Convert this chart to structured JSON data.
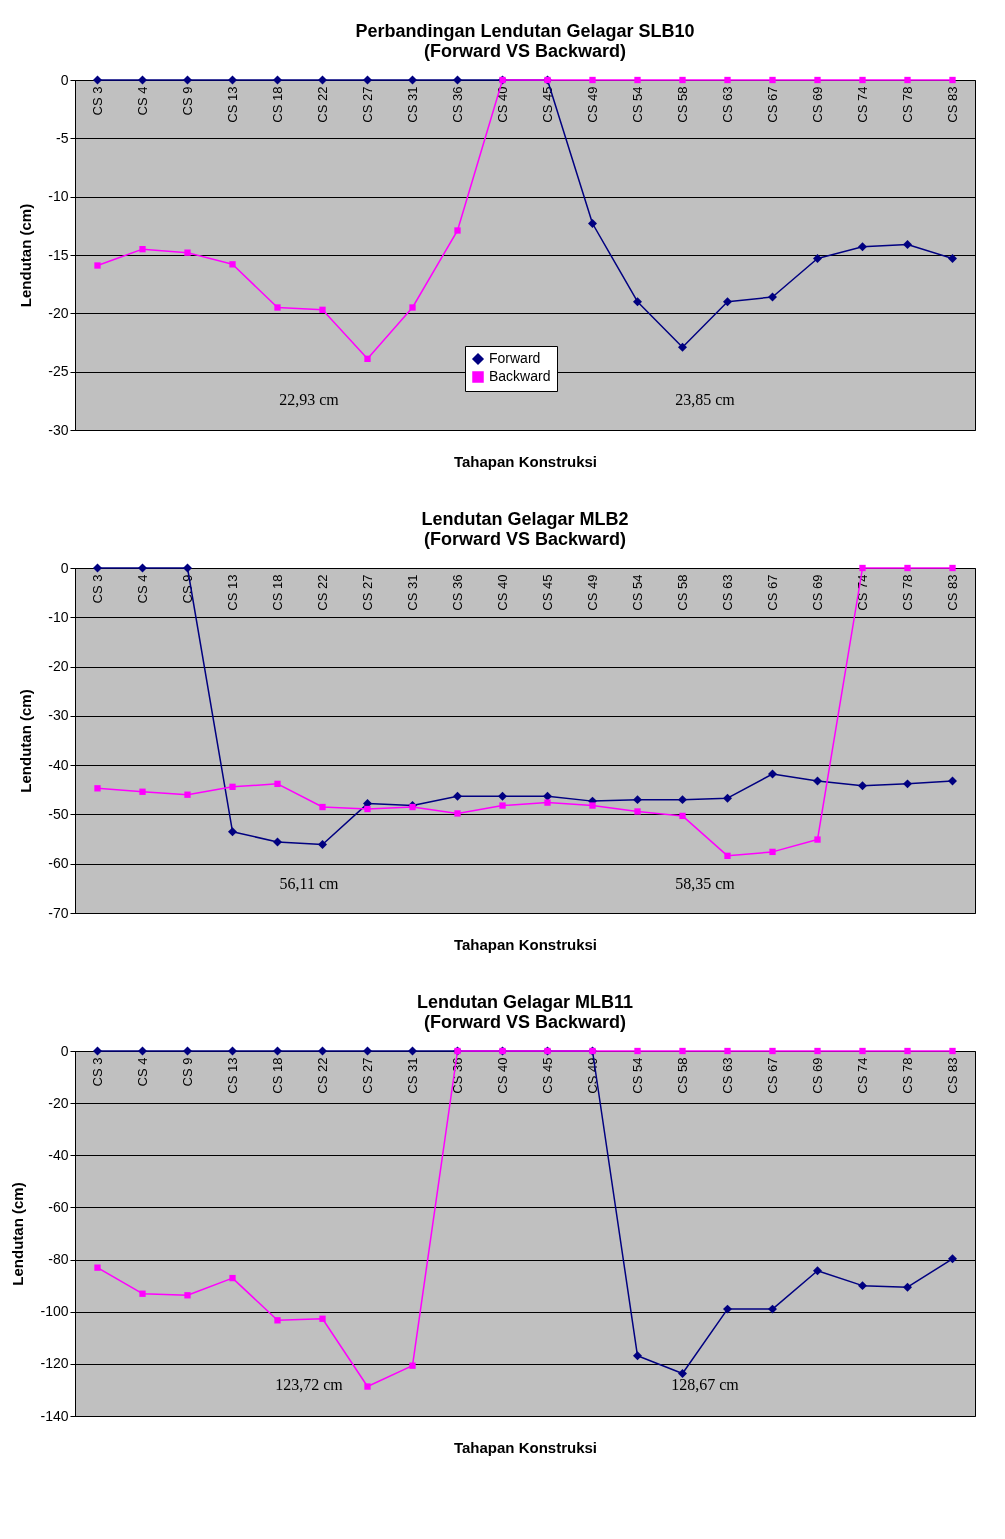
{
  "chart_data": [
    {
      "type": "line",
      "title": "Perbandingan Lendutan Gelagar SLB10\n(Forward VS Backward)",
      "xlabel": "Tahapan Konstruksi",
      "ylabel": "Lendutan (cm)",
      "categories": [
        "CS 3",
        "CS 4",
        "CS 9",
        "CS 13",
        "CS 18",
        "CS 22",
        "CS 27",
        "CS 31",
        "CS 36",
        "CS 40",
        "CS 45",
        "CS 49",
        "CS 54",
        "CS 58",
        "CS 63",
        "CS 67",
        "CS 69",
        "CS 74",
        "CS 78",
        "CS 83"
      ],
      "ylim": [
        -30,
        0
      ],
      "yticks": [
        -30,
        -25,
        -20,
        -15,
        -10,
        -5,
        0
      ],
      "grid": "y",
      "legend": "bottom",
      "annotations": [
        "22,93 cm",
        "23,85 cm"
      ],
      "series": [
        {
          "name": "Forward",
          "color": "#000080",
          "marker": "diamond",
          "values": [
            0,
            0,
            0,
            0,
            0,
            0,
            0,
            0,
            0,
            0,
            0,
            -12.3,
            -19,
            -22.9,
            -19,
            -18.6,
            -15.3,
            -14.3,
            -14.1,
            -15.3
          ]
        },
        {
          "name": "Backward",
          "color": "#ff00ff",
          "marker": "square",
          "values": [
            -15.9,
            -14.5,
            -14.8,
            -15.8,
            -19.5,
            -19.7,
            -23.9,
            -19.5,
            -12.9,
            0,
            0,
            0,
            0,
            0,
            0,
            0,
            0,
            0,
            0,
            0
          ]
        }
      ]
    },
    {
      "type": "line",
      "title": "Lendutan Gelagar MLB2\n(Forward VS Backward)",
      "xlabel": "Tahapan Konstruksi",
      "ylabel": "Lendutan (cm)",
      "categories": [
        "CS 3",
        "CS 4",
        "CS 9",
        "CS 13",
        "CS 18",
        "CS 22",
        "CS 27",
        "CS 31",
        "CS 36",
        "CS 40",
        "CS 45",
        "CS 49",
        "CS 54",
        "CS 58",
        "CS 63",
        "CS 67",
        "CS 69",
        "CS 74",
        "CS 78",
        "CS 83"
      ],
      "ylim": [
        -70,
        0
      ],
      "yticks": [
        -70,
        -60,
        -50,
        -40,
        -30,
        -20,
        -10,
        0
      ],
      "grid": "y",
      "legend": "top",
      "annotations": [
        "56,11 cm",
        "58,35 cm"
      ],
      "series": [
        {
          "name": "Forward",
          "color": "#000080",
          "marker": "diamond",
          "values": [
            0,
            0,
            0,
            -53.5,
            -55.6,
            -56.1,
            -47.8,
            -48.2,
            -46.3,
            -46.3,
            -46.3,
            -47.3,
            -47,
            -47,
            -46.7,
            -41.8,
            -43.2,
            -44.2,
            -43.8,
            -43.2
          ]
        },
        {
          "name": "Backward",
          "color": "#ff00ff",
          "marker": "square",
          "values": [
            -44.7,
            -45.4,
            -46,
            -44.4,
            -43.8,
            -48.5,
            -48.9,
            -48.5,
            -49.8,
            -48.2,
            -47.6,
            -48.2,
            -49.4,
            -50.3,
            -58.4,
            -57.6,
            -55.1,
            0,
            0,
            0
          ]
        }
      ]
    },
    {
      "type": "line",
      "title": "Lendutan Gelagar MLB11\n(Forward VS Backward)",
      "xlabel": "Tahapan Konstruksi",
      "ylabel": "Lendutan (cm)",
      "categories": [
        "CS 3",
        "CS 4",
        "CS 9",
        "CS 13",
        "CS 18",
        "CS 22",
        "CS 27",
        "CS 31",
        "CS 36",
        "CS 40",
        "CS 45",
        "CS 49",
        "CS 54",
        "CS 58",
        "CS 63",
        "CS 67",
        "CS 69",
        "CS 74",
        "CS 78",
        "CS 83"
      ],
      "ylim": [
        -140,
        0
      ],
      "yticks": [
        -140,
        -120,
        -100,
        -80,
        -60,
        -40,
        -20,
        0
      ],
      "grid": "y",
      "legend": "bottom",
      "annotations": [
        "123,72 cm",
        "128,67 cm"
      ],
      "series": [
        {
          "name": "Forward",
          "color": "#000080",
          "marker": "diamond",
          "values": [
            0,
            0,
            0,
            0,
            0,
            0,
            0,
            0,
            0,
            0,
            0,
            0,
            -116.9,
            -123.7,
            -99,
            -99,
            -84.3,
            -90,
            -90.6,
            -79.7
          ]
        },
        {
          "name": "Backward",
          "color": "#ff00ff",
          "marker": "square",
          "values": [
            -83.1,
            -93.1,
            -93.7,
            -87.1,
            -103.3,
            -102.7,
            -128.7,
            -120.7,
            0,
            0,
            0,
            0,
            0,
            0,
            0,
            0,
            0,
            0,
            0,
            0
          ]
        }
      ]
    }
  ]
}
